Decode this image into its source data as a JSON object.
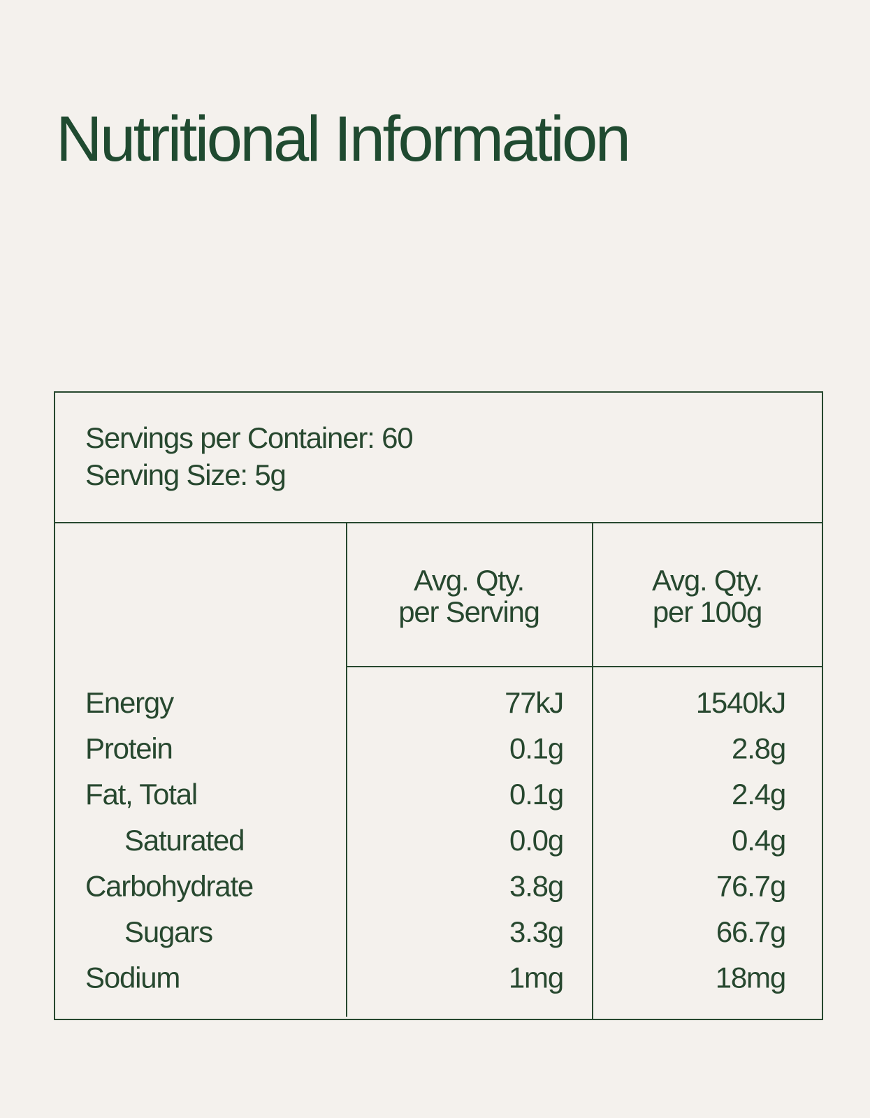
{
  "title": "Nutritional Information",
  "servings": [
    "Servings per Container: 60",
    "Serving Size: 5g"
  ],
  "table": {
    "header": [
      [
        "Avg. Qty.",
        "per Serving"
      ],
      [
        "Avg. Qty.",
        "per 100g"
      ]
    ],
    "rows": [
      {
        "name": "Energy",
        "per_serving": "77kJ",
        "per_100g": "1540kJ",
        "indent": false
      },
      {
        "name": "Protein",
        "per_serving": "0.1g",
        "per_100g": "2.8g",
        "indent": false
      },
      {
        "name": "Fat, Total",
        "per_serving": "0.1g",
        "per_100g": "2.4g",
        "indent": false
      },
      {
        "name": "Saturated",
        "per_serving": "0.0g",
        "per_100g": "0.4g",
        "indent": true
      },
      {
        "name": "Carbohydrate",
        "per_serving": "3.8g",
        "per_100g": "76.7g",
        "indent": false
      },
      {
        "name": "Sugars",
        "per_serving": "3.3g",
        "per_100g": "66.7g",
        "indent": true
      },
      {
        "name": "Sodium",
        "per_serving": "1mg",
        "per_100g": "18mg",
        "indent": false
      }
    ]
  }
}
